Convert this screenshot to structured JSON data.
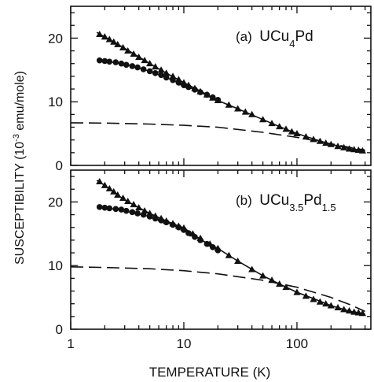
{
  "chart_data": [
    {
      "type": "scatter",
      "panel_label": "(a)",
      "compound_html": "UCu<tspan baseline-shift=\"sub\" font-size=\"13\">4</tspan>Pd",
      "compound": "UCu4Pd",
      "xscale": "log",
      "xlim": [
        1,
        450
      ],
      "ylim": [
        0,
        25
      ],
      "yticks": [
        0,
        10,
        20
      ],
      "series": [
        {
          "marker": "triangle",
          "x": [
            1.8,
            2.0,
            2.2,
            2.4,
            2.6,
            2.9,
            3.2,
            3.6,
            4.0,
            4.5,
            5.0,
            5.6,
            6.3,
            7.0,
            8.0,
            9.0,
            10.0,
            11.0,
            12.5,
            14.0,
            16.0,
            18.0,
            20.0,
            25,
            30,
            35,
            40,
            50,
            60,
            70,
            80,
            90,
            100,
            120,
            140,
            160,
            180,
            200,
            230,
            260,
            290,
            320,
            350,
            380
          ],
          "y": [
            20.6,
            20.2,
            19.8,
            19.4,
            19.0,
            18.5,
            18.0,
            17.5,
            17.0,
            16.5,
            16.0,
            15.5,
            15.0,
            14.5,
            14.0,
            13.5,
            13.0,
            12.6,
            12.1,
            11.6,
            11.1,
            10.6,
            10.2,
            9.5,
            8.9,
            8.4,
            8.0,
            7.2,
            6.6,
            6.1,
            5.7,
            5.3,
            5.0,
            4.5,
            4.1,
            3.8,
            3.5,
            3.3,
            3.0,
            2.8,
            2.6,
            2.5,
            2.4,
            2.3
          ]
        },
        {
          "marker": "circle",
          "x": [
            1.8,
            2.0,
            2.2,
            2.5,
            2.8,
            3.1,
            3.5,
            3.9,
            4.4,
            5.0,
            5.6,
            6.3,
            7.0,
            8.0,
            9.0,
            10.0,
            11.0,
            12.5,
            14.0,
            16.0,
            18.0,
            20.0
          ],
          "y": [
            16.5,
            16.4,
            16.3,
            16.2,
            16.0,
            15.8,
            15.6,
            15.4,
            15.1,
            14.8,
            14.5,
            14.2,
            13.8,
            13.4,
            13.0,
            12.6,
            12.3,
            11.9,
            11.5,
            11.1,
            10.7,
            10.3
          ]
        }
      ],
      "fit_curves": [
        {
          "style": "solid",
          "x": [
            1.7,
            2,
            3,
            5,
            7,
            10,
            15,
            20,
            30,
            50,
            70,
            100,
            150,
            200,
            300,
            400
          ],
          "y": [
            20.9,
            20.2,
            18.4,
            16.0,
            14.5,
            13.0,
            11.4,
            10.2,
            8.9,
            7.2,
            6.1,
            5.0,
            4.0,
            3.3,
            2.6,
            2.3
          ]
        },
        {
          "style": "solid",
          "x": [
            1.7,
            2,
            3,
            5,
            7,
            10,
            15,
            20
          ],
          "y": [
            16.6,
            16.4,
            15.9,
            14.8,
            13.8,
            12.6,
            11.3,
            10.3
          ]
        },
        {
          "style": "dashed",
          "x": [
            1,
            2,
            5,
            10,
            20,
            50,
            100,
            200,
            300,
            400
          ],
          "y": [
            6.7,
            6.65,
            6.5,
            6.3,
            6.0,
            5.2,
            4.4,
            3.4,
            2.8,
            2.4
          ]
        }
      ]
    },
    {
      "type": "scatter",
      "panel_label": "(b)",
      "compound_html": "UCu<tspan baseline-shift=\"sub\" font-size=\"13\">3.5</tspan>Pd<tspan baseline-shift=\"sub\" font-size=\"13\">1.5</tspan>",
      "compound": "UCu3.5Pd1.5",
      "xscale": "log",
      "xlim": [
        1,
        450
      ],
      "ylim": [
        0,
        25
      ],
      "yticks": [
        0,
        10,
        20
      ],
      "series": [
        {
          "marker": "triangle",
          "x": [
            1.8,
            2.0,
            2.2,
            2.4,
            2.6,
            2.9,
            3.2,
            3.6,
            4.0,
            4.5,
            5.0,
            5.6,
            6.3,
            7.0,
            8.0,
            9.0,
            10.0,
            12.0,
            14.0,
            17.0,
            20.0,
            25,
            30,
            40,
            50,
            60,
            70,
            80,
            100,
            120,
            140,
            160,
            180,
            200,
            230,
            260,
            290,
            320,
            350,
            380
          ],
          "y": [
            23.2,
            22.6,
            22.1,
            21.6,
            21.1,
            20.6,
            20.1,
            19.6,
            19.1,
            18.6,
            18.2,
            17.8,
            17.4,
            17.0,
            16.6,
            16.2,
            15.9,
            15.0,
            14.3,
            13.4,
            12.7,
            11.6,
            10.7,
            9.4,
            8.4,
            7.7,
            7.1,
            6.6,
            5.8,
            5.2,
            4.7,
            4.3,
            4.0,
            3.7,
            3.4,
            3.1,
            2.9,
            2.7,
            2.6,
            2.5
          ]
        },
        {
          "marker": "circle",
          "x": [
            1.8,
            2.0,
            2.2,
            2.5,
            2.8,
            3.1,
            3.5,
            3.9,
            4.4,
            5.0,
            5.6,
            6.3,
            7.0,
            8.0,
            9.0,
            10.0,
            11.0,
            12.5,
            14.0,
            16.0,
            18.0,
            20.0
          ],
          "y": [
            19.2,
            19.1,
            19.0,
            18.9,
            18.8,
            18.6,
            18.4,
            18.2,
            18.0,
            17.7,
            17.4,
            17.1,
            16.8,
            16.4,
            16.0,
            15.6,
            15.1,
            14.5,
            14.0,
            13.4,
            12.9,
            12.4
          ]
        }
      ],
      "fit_curves": [
        {
          "style": "solid",
          "x": [
            1.7,
            2,
            3,
            5,
            7,
            10,
            15,
            20,
            30,
            50,
            70,
            100,
            150,
            200,
            300,
            400
          ],
          "y": [
            23.4,
            22.6,
            20.3,
            18.2,
            17.0,
            15.9,
            13.8,
            12.7,
            10.7,
            8.4,
            7.1,
            5.8,
            4.6,
            3.7,
            2.8,
            2.4
          ]
        },
        {
          "style": "solid",
          "x": [
            1.7,
            2,
            3,
            5,
            7,
            10,
            15,
            20
          ],
          "y": [
            19.3,
            19.1,
            18.6,
            17.7,
            16.8,
            15.6,
            13.8,
            12.4
          ]
        },
        {
          "style": "dashed",
          "x": [
            1,
            2,
            5,
            10,
            20,
            50,
            100,
            200,
            300,
            400
          ],
          "y": [
            9.8,
            9.7,
            9.5,
            9.2,
            8.7,
            7.7,
            6.6,
            5.0,
            3.8,
            2.8
          ]
        }
      ]
    }
  ],
  "axes": {
    "ylabel": "SUSCEPTIBILITY (10<tspan baseline-shift=\"super\" font-size=\"11\">-3</tspan> emu/mole)",
    "xlabel": "TEMPERATURE  (K)",
    "xtick_labels": [
      "1",
      "10",
      "100"
    ]
  }
}
